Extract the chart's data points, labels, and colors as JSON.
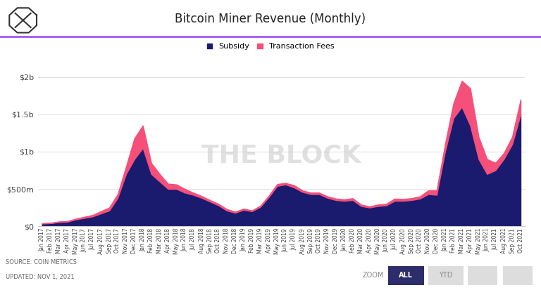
{
  "title": "Bitcoin Miner Revenue (Monthly)",
  "subsidy_color": "#1a1a6e",
  "fees_color": "#f5507a",
  "bg_color": "#ffffff",
  "grid_color": "#e0e0e0",
  "purple_line_color": "#a855f7",
  "watermark_color": "#d0d0d0",
  "source_line1": "SOURCE: COIN METRICS",
  "source_line2": "UPDATED: NOV 1, 2021",
  "months": [
    "Jan 2017",
    "Feb 2017",
    "Mar 2017",
    "Apr 2017",
    "May 2017",
    "Jun 2017",
    "Jul 2017",
    "Aug 2017",
    "Sep 2017",
    "Oct 2017",
    "Nov 2017",
    "Dec 2017",
    "Jan 2018",
    "Feb 2018",
    "Mar 2018",
    "Apr 2018",
    "May 2018",
    "Jun 2018",
    "Jul 2018",
    "Aug 2018",
    "Sep 2018",
    "Oct 2018",
    "Nov 2018",
    "Dec 2018",
    "Jan 2019",
    "Feb 2019",
    "Mar 2019",
    "Apr 2019",
    "May 2019",
    "Jun 2019",
    "Jul 2019",
    "Aug 2019",
    "Sep 2019",
    "Oct 2019",
    "Nov 2019",
    "Dec 2019",
    "Jan 2020",
    "Feb 2020",
    "Mar 2020",
    "Apr 2020",
    "May 2020",
    "Jun 2020",
    "Jul 2020",
    "Aug 2020",
    "Sep 2020",
    "Oct 2020",
    "Nov 2020",
    "Dec 2020",
    "Jan 2021",
    "Feb 2021",
    "Mar 2021",
    "Apr 2021",
    "May 2021",
    "Jun 2021",
    "Jul 2021",
    "Aug 2021",
    "Sep 2021",
    "Oct 2021"
  ],
  "subsidy": [
    35000000,
    40000000,
    55000000,
    60000000,
    90000000,
    110000000,
    130000000,
    170000000,
    210000000,
    380000000,
    700000000,
    900000000,
    1050000000,
    700000000,
    600000000,
    500000000,
    500000000,
    450000000,
    420000000,
    380000000,
    330000000,
    280000000,
    210000000,
    180000000,
    220000000,
    200000000,
    260000000,
    390000000,
    540000000,
    560000000,
    520000000,
    460000000,
    430000000,
    430000000,
    380000000,
    350000000,
    340000000,
    350000000,
    270000000,
    250000000,
    270000000,
    280000000,
    340000000,
    340000000,
    350000000,
    370000000,
    430000000,
    420000000,
    1000000000,
    1450000000,
    1600000000,
    1350000000,
    900000000,
    700000000,
    750000000,
    900000000,
    1100000000,
    1500000000
  ],
  "fees": [
    5000000,
    5000000,
    8000000,
    8000000,
    10000000,
    15000000,
    20000000,
    30000000,
    40000000,
    50000000,
    100000000,
    280000000,
    300000000,
    150000000,
    100000000,
    70000000,
    60000000,
    50000000,
    30000000,
    25000000,
    20000000,
    20000000,
    20000000,
    15000000,
    15000000,
    12000000,
    15000000,
    20000000,
    25000000,
    20000000,
    30000000,
    20000000,
    20000000,
    20000000,
    20000000,
    20000000,
    20000000,
    25000000,
    20000000,
    15000000,
    20000000,
    20000000,
    30000000,
    25000000,
    25000000,
    30000000,
    50000000,
    60000000,
    100000000,
    200000000,
    350000000,
    500000000,
    300000000,
    200000000,
    100000000,
    80000000,
    100000000,
    200000000
  ],
  "ylim": [
    0,
    2100000000
  ],
  "yticks": [
    0,
    500000000,
    1000000000,
    1500000000,
    2000000000
  ],
  "ytick_labels": [
    "$0",
    "$500m",
    "$1b",
    "$1.5b",
    "$2b"
  ]
}
